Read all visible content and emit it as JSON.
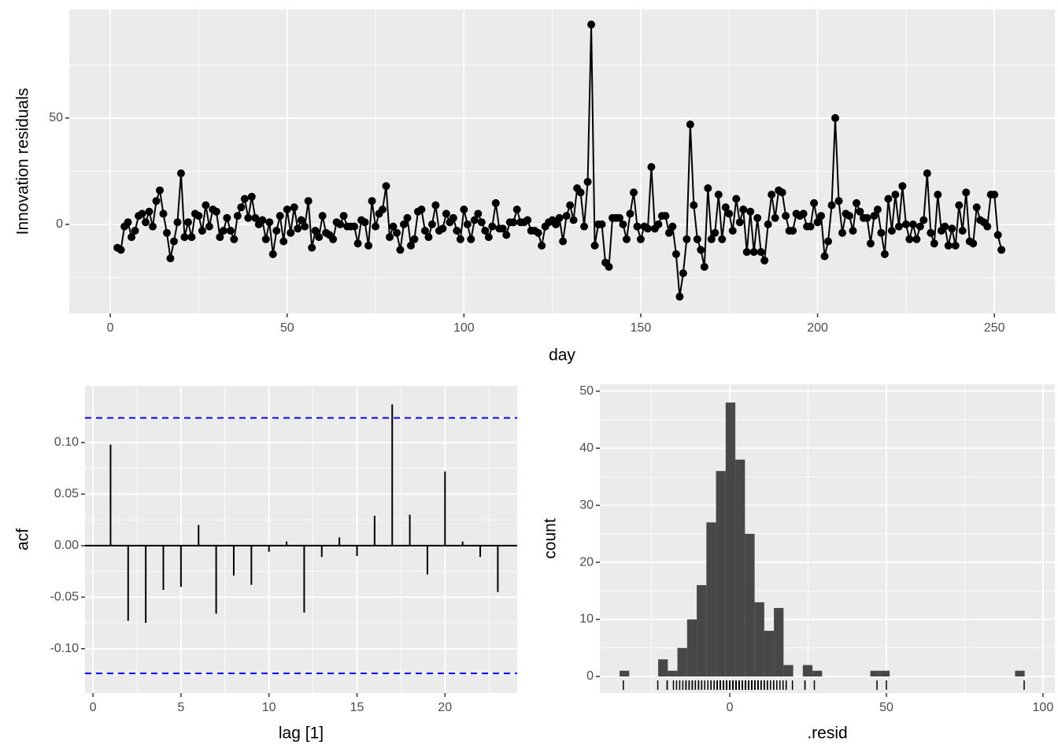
{
  "chart_data": [
    {
      "type": "line",
      "xlabel": "day",
      "ylabel": "Innovation residuals",
      "color": "#000000",
      "x": [
        2,
        3,
        4,
        5,
        6,
        7,
        8,
        9,
        10,
        11,
        12,
        13,
        14,
        15,
        16,
        17,
        18,
        19,
        20,
        21,
        22,
        23,
        24,
        25,
        26,
        27,
        28,
        29,
        30,
        31,
        32,
        33,
        34,
        35,
        36,
        37,
        38,
        39,
        40,
        41,
        42,
        43,
        44,
        45,
        46,
        47,
        48,
        49,
        50,
        51,
        52,
        53,
        54,
        55,
        56,
        57,
        58,
        59,
        60,
        61,
        62,
        63,
        64,
        65,
        66,
        67,
        68,
        69,
        70,
        71,
        72,
        73,
        74,
        75,
        76,
        77,
        78,
        79,
        80,
        81,
        82,
        83,
        84,
        85,
        86,
        87,
        88,
        89,
        90,
        91,
        92,
        93,
        94,
        95,
        96,
        97,
        98,
        99,
        100,
        101,
        102,
        103,
        104,
        105,
        106,
        107,
        108,
        109,
        110,
        111,
        112,
        113,
        114,
        115,
        116,
        117,
        118,
        119,
        120,
        121,
        122,
        123,
        124,
        125,
        126,
        127,
        128,
        129,
        130,
        131,
        132,
        133,
        134,
        135,
        136,
        137,
        138,
        139,
        140,
        141,
        142,
        143,
        144,
        145,
        146,
        147,
        148,
        149,
        150,
        151,
        152,
        153,
        154,
        155,
        156,
        157,
        158,
        159,
        160,
        161,
        162,
        163,
        164,
        165,
        166,
        167,
        168,
        169,
        170,
        171,
        172,
        173,
        174,
        175,
        176,
        177,
        178,
        179,
        180,
        181,
        182,
        183,
        184,
        185,
        186,
        187,
        188,
        189,
        190,
        191,
        192,
        193,
        194,
        195,
        196,
        197,
        198,
        199,
        200,
        201,
        202,
        203,
        204,
        205,
        206,
        207,
        208,
        209,
        210,
        211,
        212,
        213,
        214,
        215,
        216,
        217,
        218,
        219,
        220,
        221,
        222,
        223,
        224,
        225,
        226,
        227,
        228,
        229,
        230,
        231,
        232,
        233,
        234,
        235,
        236,
        237,
        238,
        239,
        240,
        241,
        242,
        243,
        244,
        245,
        246,
        247,
        248,
        249,
        250,
        251,
        252
      ],
      "values": [
        -11,
        -12,
        -1,
        1,
        -6,
        -3,
        4,
        5,
        1,
        6,
        -1,
        11,
        16,
        5,
        -4,
        -16,
        -8,
        1,
        24,
        -6,
        1,
        -6,
        5,
        4,
        -3,
        9,
        -1,
        7,
        6,
        -6,
        -3,
        3,
        -3,
        -7,
        4,
        8,
        12,
        3,
        13,
        3,
        0,
        2,
        -7,
        1,
        -14,
        -3,
        4,
        -8,
        7,
        -4,
        8,
        -2,
        2,
        -1,
        11,
        -11,
        -3,
        -6,
        4,
        -4,
        -5,
        -7,
        1,
        0,
        4,
        -1,
        -1,
        -1,
        -9,
        2,
        1,
        -10,
        11,
        -1,
        5,
        7,
        18,
        -6,
        -1,
        -4,
        -12,
        0,
        3,
        -10,
        -7,
        6,
        7,
        -3,
        -6,
        0,
        9,
        -3,
        -2,
        5,
        1,
        3,
        -3,
        -7,
        7,
        0,
        -7,
        2,
        5,
        1,
        -3,
        -6,
        -1,
        10,
        -2,
        -2,
        -5,
        1,
        1,
        7,
        1,
        1,
        2,
        -3,
        -3,
        -4,
        -10,
        -1,
        1,
        2,
        0,
        3,
        -8,
        4,
        9,
        2,
        17,
        15,
        -1,
        20,
        94,
        -10,
        0,
        0,
        -18,
        -20,
        3,
        3,
        3,
        0,
        -7,
        5,
        15,
        -1,
        -7,
        -1,
        -2,
        27,
        -2,
        0,
        4,
        4,
        -4,
        -1,
        -14,
        -34,
        -23,
        -7,
        47,
        9,
        -7,
        -12,
        -20,
        17,
        -7,
        -4,
        14,
        -7,
        8,
        5,
        -3,
        12,
        1,
        7,
        -13,
        6,
        -13,
        3,
        -13,
        -17,
        0,
        14,
        3,
        16,
        15,
        4,
        -3,
        -3,
        5,
        4,
        5,
        -1,
        -1,
        10,
        1,
        4,
        -15,
        -8,
        9,
        50,
        11,
        -4,
        5,
        4,
        -3,
        10,
        6,
        3,
        3,
        -9,
        4,
        7,
        -4,
        -14,
        12,
        -3,
        14,
        -1,
        18,
        0,
        -7,
        0,
        -7,
        -1,
        2,
        24,
        -4,
        -9,
        14,
        -3,
        -1,
        -10,
        -2,
        -10,
        9,
        -3,
        15,
        -8,
        -9,
        8,
        2,
        1,
        -1,
        14,
        14,
        -5,
        -12
      ],
      "xlim": [
        -11.6,
        267.1
      ],
      "ylim": [
        -41.9,
        101.1
      ],
      "xticks": [
        0,
        50,
        100,
        150,
        200,
        250
      ],
      "yticks": [
        0,
        50
      ],
      "minor_xticks": [
        25,
        75,
        125,
        175,
        225
      ],
      "minor_yticks": [
        -25,
        25,
        75
      ],
      "grid": true
    },
    {
      "type": "acf",
      "xlabel": "lag [1]",
      "ylabel": "acf",
      "color": "#000000",
      "x": [
        1,
        2,
        3,
        4,
        5,
        6,
        7,
        8,
        9,
        10,
        11,
        12,
        13,
        14,
        15,
        16,
        17,
        18,
        19,
        20,
        21,
        22,
        23
      ],
      "values": [
        0.098,
        -0.073,
        -0.075,
        -0.043,
        -0.04,
        0.02,
        -0.066,
        -0.029,
        -0.038,
        -0.006,
        0.004,
        -0.065,
        -0.011,
        0.008,
        -0.01,
        0.029,
        0.137,
        0.03,
        -0.028,
        0.072,
        0.004,
        -0.011,
        -0.045
      ],
      "bounds": [
        -0.124,
        0.124
      ],
      "bounds_color": "#0000ff",
      "xlim": [
        -0.45,
        24.1
      ],
      "ylim": [
        -0.143,
        0.155
      ],
      "xticks": [
        0,
        5,
        10,
        15,
        20
      ],
      "yticks": [
        {
          "value": -0.1,
          "label": "-0.10"
        },
        -0.05,
        {
          "value": 0,
          "label": "0.00"
        },
        0.05,
        {
          "value": 0.1,
          "label": "0.10"
        }
      ],
      "minor_xticks": [
        2.5,
        7.5,
        12.5,
        17.5,
        22.5
      ],
      "minor_yticks": [
        -0.125,
        -0.075,
        -0.025,
        0.025,
        0.075,
        0.125
      ],
      "grid": true
    },
    {
      "type": "histogram",
      "xlabel": ".resid",
      "ylabel": "count",
      "color": "#474747",
      "rug_color": "#000000",
      "bins": [
        -35.2,
        -32.12,
        -29.04,
        -25.96,
        -22.88,
        -19.8,
        -16.72,
        -13.64,
        -10.56,
        -7.48,
        -4.4,
        -1.32,
        1.76,
        4.84,
        7.92,
        11,
        14.08,
        17.16,
        20.24,
        23.32,
        26.4,
        29.48,
        32.56,
        35.64,
        38.72,
        41.8,
        44.88,
        47.96,
        51.04,
        54.12,
        57.2,
        60.28,
        63.36,
        66.44,
        69.52,
        72.6,
        75.68,
        78.76,
        81.84,
        84.92,
        88,
        91.08,
        94.16
      ],
      "counts": [
        1,
        0,
        0,
        0,
        3,
        1,
        5,
        10,
        16,
        27,
        36,
        48,
        38,
        25,
        13,
        8,
        12,
        2,
        0,
        2,
        1,
        0,
        0,
        0,
        0,
        0,
        1,
        1,
        0,
        0,
        0,
        0,
        0,
        0,
        0,
        0,
        0,
        0,
        0,
        0,
        0,
        1
      ],
      "xlim": [
        -41.5,
        103.8
      ],
      "ylim": [
        -2.9,
        51.2
      ],
      "xticks": [
        0,
        50,
        100
      ],
      "yticks": [
        0,
        10,
        20,
        30,
        40,
        50
      ],
      "minor_xticks": [
        -25,
        25,
        75
      ],
      "minor_yticks": [
        5,
        15,
        25,
        35,
        45
      ],
      "grid": true
    }
  ]
}
